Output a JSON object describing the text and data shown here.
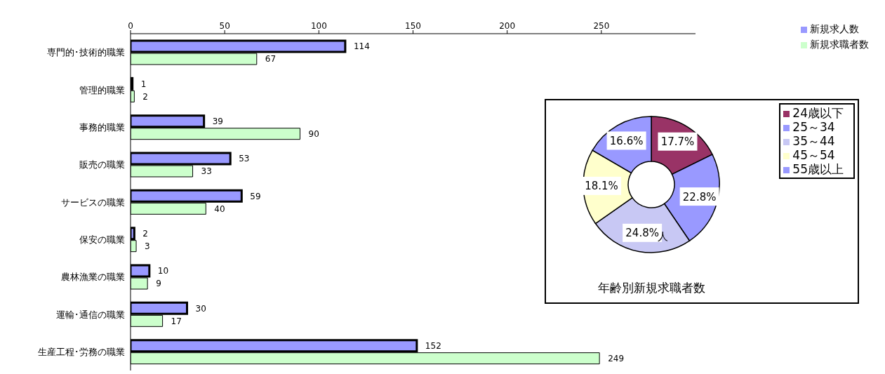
{
  "chart_data": [
    {
      "type": "bar",
      "orientation": "horizontal",
      "categories": [
        "専門的･技術的職業",
        "管理的職業",
        "事務的職業",
        "販売の職業",
        "サービスの職業",
        "保安の職業",
        "農林漁業の職業",
        "運輸･通信の職業",
        "生産工程･労務の職業"
      ],
      "series": [
        {
          "name": "新規求人数",
          "color": "#9999ff",
          "values": [
            114,
            1,
            39,
            53,
            59,
            2,
            10,
            30,
            152
          ]
        },
        {
          "name": "新規求職者数",
          "color": "#ccffcc",
          "values": [
            67,
            2,
            90,
            33,
            40,
            3,
            9,
            17,
            249
          ]
        }
      ],
      "xlim": [
        0,
        300
      ],
      "xticks": [
        0,
        50,
        100,
        150,
        200,
        250
      ],
      "data_labels": true,
      "legend": "top right"
    },
    {
      "type": "donut",
      "title": "年齢別新規求職者数",
      "categories": [
        "24歳以下",
        "25～34",
        "35～44",
        "45～54",
        "55歳以上"
      ],
      "values": [
        17.7,
        22.8,
        24.8,
        18.1,
        16.6
      ],
      "colors": [
        "#993366",
        "#9999ff",
        "#c8c8f4",
        "#ffffcc",
        "#9999ff"
      ],
      "value_labels": [
        "17.7%",
        "22.8%",
        "24.8%",
        "18.1%",
        "16.6%"
      ],
      "legend": "top right",
      "annotations": [
        {
          "text": "人",
          "x": "35～44"
        }
      ]
    }
  ]
}
